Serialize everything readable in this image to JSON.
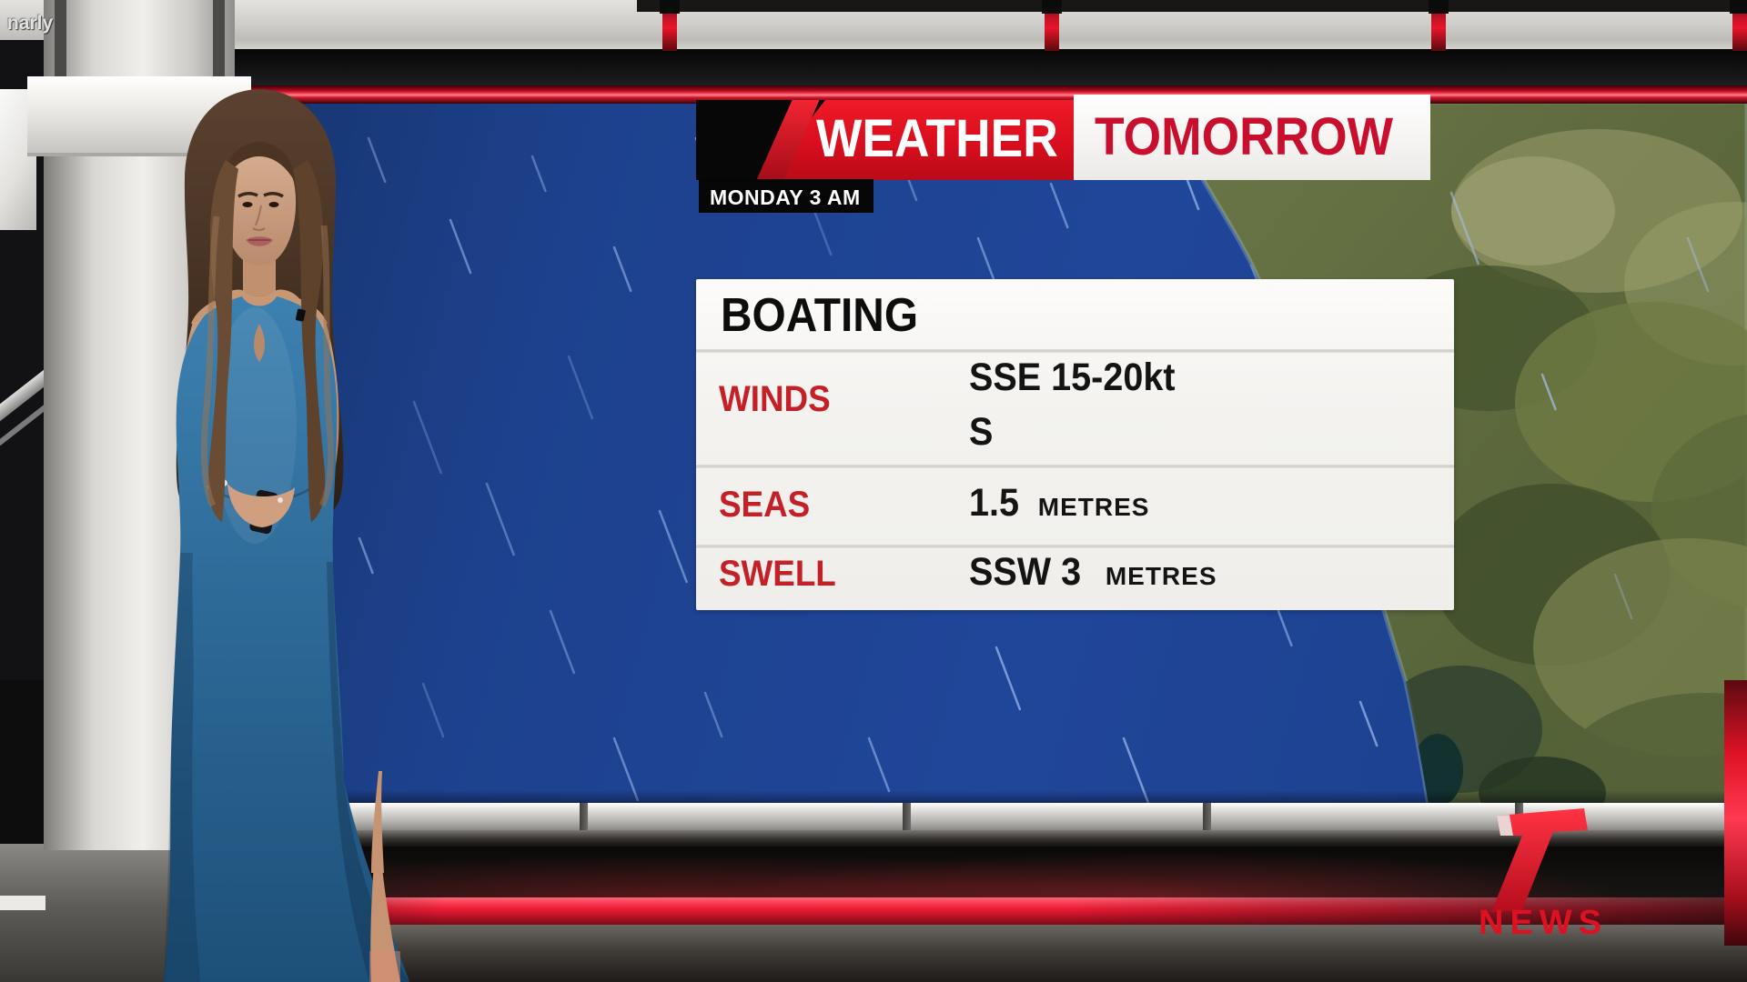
{
  "watermark": "narly",
  "banner": {
    "title": "WEATHER",
    "subtitle": "TOMORROW",
    "timestamp": "MONDAY 3 AM"
  },
  "panel": {
    "title": "BOATING",
    "rows": [
      {
        "label": "WINDS",
        "value": "SSE 15-20kt",
        "value2": "S"
      },
      {
        "label": "SEAS",
        "value": "1.5",
        "unit": "METRES"
      },
      {
        "label": "SWELL",
        "value": "SSW 3",
        "unit": "METRES"
      }
    ]
  },
  "logo": {
    "network": "7",
    "text": "NEWS"
  },
  "colors": {
    "banner_red": "#d90e1e",
    "subtitle_red": "#c8102e",
    "label_red": "#c32028",
    "map_blue": "#1d418d",
    "accent_red": "#e01226"
  }
}
